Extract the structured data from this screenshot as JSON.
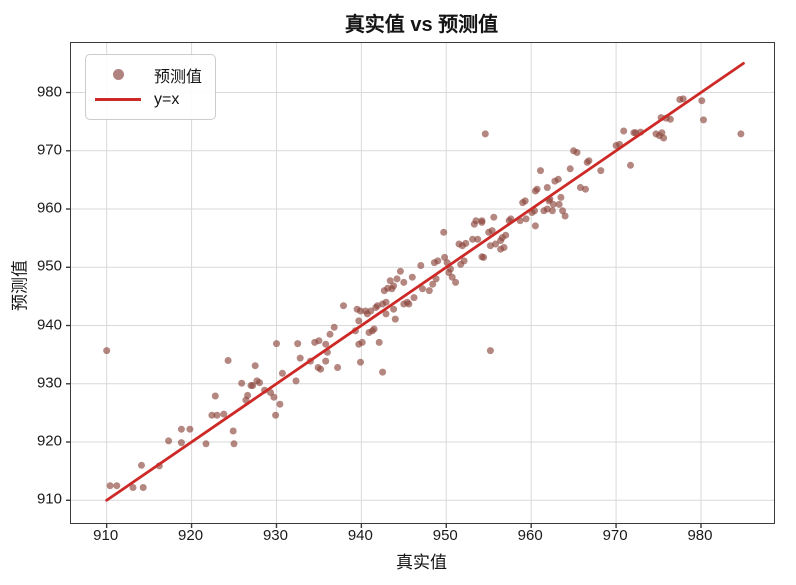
{
  "title": "真实值 vs 预测值",
  "legend": {
    "scatter_label": "预测值",
    "line_label": "y=x"
  },
  "colors": {
    "scatter": "rgba(140,70,62,0.65)",
    "scatter_legend": "#b08380",
    "line": "#cd2a27",
    "grid": "#d9d9d9",
    "spine": "#3a3a3a",
    "text": "#141414"
  },
  "chart_data": {
    "type": "scatter",
    "title": "真实值 vs 预测值",
    "xlabel": "真实值",
    "ylabel": "预测值",
    "xlim": [
      905.8,
      988.6
    ],
    "ylim": [
      906.1,
      988.5
    ],
    "xticks": [
      910,
      920,
      930,
      940,
      950,
      960,
      970,
      980
    ],
    "yticks": [
      910,
      920,
      930,
      940,
      950,
      960,
      970,
      980
    ],
    "grid": true,
    "legend_position": "upper left",
    "marker_radius": 3.5,
    "identity_line": {
      "name": "y=x",
      "x": [
        910,
        985
      ],
      "y": [
        910,
        985
      ]
    },
    "series": [
      {
        "name": "预测值",
        "points": [
          [
            910.4,
            912.5
          ],
          [
            911.2,
            912.5
          ],
          [
            913.1,
            912.2
          ],
          [
            914.3,
            912.2
          ],
          [
            910.0,
            935.7
          ],
          [
            914.1,
            916.0
          ],
          [
            916.2,
            915.9
          ],
          [
            917.3,
            920.2
          ],
          [
            918.8,
            922.2
          ],
          [
            919.8,
            922.2
          ],
          [
            918.8,
            919.9
          ],
          [
            921.7,
            919.7
          ],
          [
            922.8,
            927.9
          ],
          [
            922.4,
            924.6
          ],
          [
            923.0,
            924.6
          ],
          [
            923.8,
            924.8
          ],
          [
            924.9,
            921.9
          ],
          [
            925.0,
            919.7
          ],
          [
            924.3,
            934.0
          ],
          [
            925.9,
            930.1
          ],
          [
            926.4,
            927.2
          ],
          [
            926.6,
            928.0
          ],
          [
            927.0,
            929.7
          ],
          [
            927.2,
            929.7
          ],
          [
            927.5,
            933.1
          ],
          [
            927.7,
            930.5
          ],
          [
            928.0,
            930.2
          ],
          [
            928.6,
            928.9
          ],
          [
            929.3,
            928.5
          ],
          [
            929.7,
            927.7
          ],
          [
            930.0,
            936.9
          ],
          [
            929.9,
            924.6
          ],
          [
            930.7,
            931.8
          ],
          [
            930.4,
            926.5
          ],
          [
            932.3,
            930.5
          ],
          [
            932.5,
            936.9
          ],
          [
            932.8,
            934.4
          ],
          [
            934.0,
            933.9
          ],
          [
            934.5,
            937.1
          ],
          [
            935.0,
            937.4
          ],
          [
            935.8,
            936.8
          ],
          [
            934.9,
            932.8
          ],
          [
            935.2,
            932.5
          ],
          [
            935.8,
            933.9
          ],
          [
            936.0,
            935.4
          ],
          [
            936.3,
            938.5
          ],
          [
            936.8,
            939.7
          ],
          [
            937.2,
            932.8
          ],
          [
            937.9,
            943.4
          ],
          [
            939.3,
            939.1
          ],
          [
            939.7,
            936.8
          ],
          [
            940.1,
            937.1
          ],
          [
            939.9,
            933.7
          ],
          [
            939.5,
            942.8
          ],
          [
            939.9,
            942.5
          ],
          [
            940.5,
            942.5
          ],
          [
            940.7,
            942.0
          ],
          [
            939.7,
            940.8
          ],
          [
            941.1,
            942.5
          ],
          [
            940.9,
            938.8
          ],
          [
            941.3,
            939.1
          ],
          [
            941.5,
            939.4
          ],
          [
            941.7,
            943.1
          ],
          [
            941.9,
            943.4
          ],
          [
            942.5,
            943.7
          ],
          [
            942.9,
            942.0
          ],
          [
            942.1,
            937.1
          ],
          [
            942.5,
            932.0
          ],
          [
            943.8,
            942.8
          ],
          [
            944.0,
            941.1
          ],
          [
            942.7,
            946.0
          ],
          [
            943.1,
            946.4
          ],
          [
            942.9,
            944.0
          ],
          [
            943.6,
            946.3
          ],
          [
            943.8,
            946.8
          ],
          [
            943.4,
            947.7
          ],
          [
            944.2,
            948.0
          ],
          [
            944.6,
            949.3
          ],
          [
            945.0,
            943.7
          ],
          [
            945.4,
            944.0
          ],
          [
            945.0,
            947.4
          ],
          [
            946.0,
            948.3
          ],
          [
            946.2,
            944.8
          ],
          [
            945.6,
            943.7
          ],
          [
            947.0,
            950.3
          ],
          [
            947.2,
            946.3
          ],
          [
            948.0,
            946.0
          ],
          [
            948.4,
            947.1
          ],
          [
            948.8,
            948.0
          ],
          [
            948.6,
            950.8
          ],
          [
            949.0,
            951.1
          ],
          [
            949.7,
            956.0
          ],
          [
            949.8,
            951.7
          ],
          [
            950.1,
            950.8
          ],
          [
            950.3,
            949.1
          ],
          [
            950.5,
            949.7
          ],
          [
            950.7,
            948.3
          ],
          [
            951.1,
            947.4
          ],
          [
            951.5,
            954.0
          ],
          [
            951.9,
            953.7
          ],
          [
            952.3,
            954.1
          ],
          [
            951.7,
            950.5
          ],
          [
            952.1,
            951.1
          ],
          [
            953.1,
            954.8
          ],
          [
            953.5,
            958.0
          ],
          [
            953.7,
            954.8
          ],
          [
            954.2,
            957.7
          ],
          [
            954.4,
            951.7
          ],
          [
            953.3,
            957.4
          ],
          [
            954.2,
            958.0
          ],
          [
            954.2,
            951.8
          ],
          [
            954.6,
            972.9
          ],
          [
            955.2,
            935.7
          ],
          [
            955.0,
            956.0
          ],
          [
            955.4,
            956.3
          ],
          [
            955.2,
            953.7
          ],
          [
            955.8,
            954.0
          ],
          [
            956.4,
            953.1
          ],
          [
            956.8,
            953.4
          ],
          [
            955.6,
            958.6
          ],
          [
            956.4,
            954.6
          ],
          [
            956.6,
            955.1
          ],
          [
            957.0,
            955.5
          ],
          [
            957.4,
            958.0
          ],
          [
            957.6,
            958.3
          ],
          [
            958.7,
            958.0
          ],
          [
            959.0,
            961.1
          ],
          [
            959.3,
            961.4
          ],
          [
            959.4,
            958.3
          ],
          [
            960.1,
            959.4
          ],
          [
            960.4,
            959.7
          ],
          [
            960.5,
            957.1
          ],
          [
            961.5,
            959.7
          ],
          [
            961.9,
            960.0
          ],
          [
            960.5,
            963.1
          ],
          [
            960.7,
            963.4
          ],
          [
            961.1,
            966.6
          ],
          [
            961.9,
            963.7
          ],
          [
            962.1,
            961.4
          ],
          [
            962.2,
            961.7
          ],
          [
            962.5,
            959.7
          ],
          [
            962.6,
            960.8
          ],
          [
            963.3,
            960.8
          ],
          [
            962.8,
            964.8
          ],
          [
            963.2,
            965.1
          ],
          [
            963.5,
            962.0
          ],
          [
            963.7,
            959.7
          ],
          [
            964.0,
            958.8
          ],
          [
            964.6,
            966.9
          ],
          [
            965.0,
            970.0
          ],
          [
            965.4,
            969.7
          ],
          [
            965.8,
            963.7
          ],
          [
            966.4,
            963.4
          ],
          [
            966.6,
            968.0
          ],
          [
            966.8,
            968.3
          ],
          [
            968.2,
            966.6
          ],
          [
            970.0,
            970.9
          ],
          [
            970.4,
            971.1
          ],
          [
            970.9,
            973.4
          ],
          [
            972.1,
            973.1
          ],
          [
            971.7,
            967.5
          ],
          [
            972.3,
            973.1
          ],
          [
            972.9,
            973.2
          ],
          [
            974.7,
            972.9
          ],
          [
            975.1,
            972.6
          ],
          [
            975.4,
            973.1
          ],
          [
            975.6,
            972.2
          ],
          [
            975.3,
            975.7
          ],
          [
            975.9,
            975.6
          ],
          [
            976.4,
            975.4
          ],
          [
            977.5,
            978.8
          ],
          [
            977.9,
            978.9
          ],
          [
            980.1,
            978.6
          ],
          [
            980.3,
            975.3
          ],
          [
            984.7,
            972.9
          ]
        ]
      }
    ]
  }
}
